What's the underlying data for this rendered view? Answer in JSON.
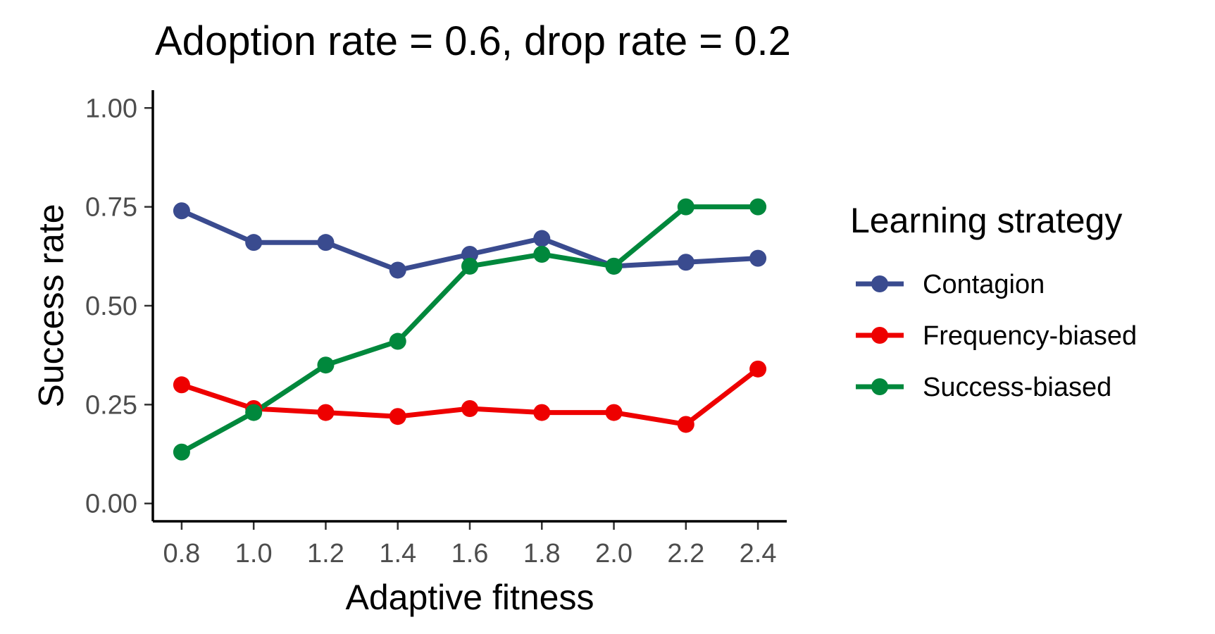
{
  "chart_data": {
    "type": "line",
    "title": "Adoption rate = 0.6, drop rate = 0.2",
    "xlabel": "Adaptive fitness",
    "ylabel": "Success rate",
    "x": [
      0.8,
      1.0,
      1.2,
      1.4,
      1.6,
      1.8,
      2.0,
      2.2,
      2.4
    ],
    "x_tick_labels": [
      "0.8",
      "1.0",
      "1.2",
      "1.4",
      "1.6",
      "1.8",
      "2.0",
      "2.2",
      "2.4"
    ],
    "y_ticks": [
      0,
      0.25,
      0.5,
      0.75,
      1.0
    ],
    "y_tick_labels": [
      "0.00",
      "0.25",
      "0.50",
      "0.75",
      "1.00"
    ],
    "xlim": [
      0.72,
      2.48
    ],
    "ylim": [
      -0.045,
      1.045
    ],
    "grid": false,
    "legend_title": "Learning strategy",
    "legend_position": "right",
    "series": [
      {
        "name": "Contagion",
        "color": "#3a4b8f",
        "values": [
          0.74,
          0.66,
          0.66,
          0.59,
          0.63,
          0.67,
          0.6,
          0.61,
          0.62
        ]
      },
      {
        "name": "Frequency-biased",
        "color": "#ee0000",
        "values": [
          0.3,
          0.24,
          0.23,
          0.22,
          0.24,
          0.23,
          0.23,
          0.2,
          0.34
        ]
      },
      {
        "name": "Success-biased",
        "color": "#00883c",
        "values": [
          0.13,
          0.23,
          0.35,
          0.41,
          0.6,
          0.63,
          0.6,
          0.75,
          0.75
        ]
      }
    ]
  }
}
